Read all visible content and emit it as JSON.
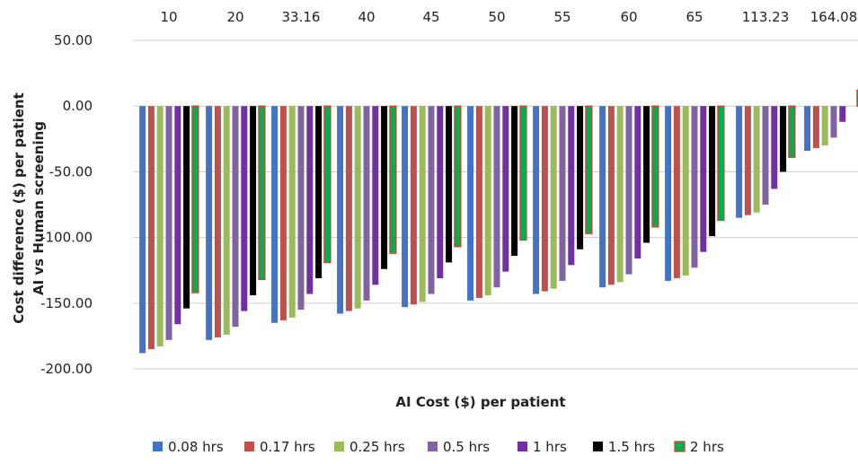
{
  "chart_data": {
    "type": "bar",
    "title": "",
    "xlabel": "AI Cost ($) per patient",
    "ylabel_line1": "Cost difference ($) per patient",
    "ylabel_line2": "AI vs Human screening",
    "ylim": [
      -200,
      50
    ],
    "yticks": [
      50,
      0,
      -50,
      -100,
      -150,
      -200
    ],
    "ytick_labels": [
      "50.00",
      "0.00",
      "-50.00",
      "-100.00",
      "-150.00",
      "-200.00"
    ],
    "grid": true,
    "legend_position": "bottom",
    "x_axis_labels_position": "top",
    "categories": [
      "10",
      "20",
      "33.16",
      "40",
      "45",
      "50",
      "55",
      "60",
      "65",
      "113.23",
      "164.08"
    ],
    "series": [
      {
        "name": "0.08 hrs",
        "color": "#4472c4",
        "values": [
          -188,
          -178,
          -165,
          -158,
          -153,
          -148,
          -143,
          -138,
          -133,
          -85,
          -34
        ]
      },
      {
        "name": "0.17 hrs",
        "color": "#c0504d",
        "values": [
          -185,
          -176,
          -163,
          -156,
          -151,
          -146,
          -141,
          -136,
          -131,
          -83,
          -32
        ]
      },
      {
        "name": "0.25 hrs",
        "color": "#9bbb59",
        "values": [
          -183,
          -174,
          -161,
          -154,
          -149,
          -144,
          -139,
          -134,
          -129,
          -81,
          -30
        ]
      },
      {
        "name": "0.5 hrs",
        "color": "#8064a2",
        "values": [
          -178,
          -168,
          -155,
          -148,
          -143,
          -138,
          -133,
          -128,
          -123,
          -75,
          -24
        ]
      },
      {
        "name": "1 hrs",
        "color": "#7030a0",
        "values": [
          -166,
          -156,
          -143,
          -136,
          -131,
          -126,
          -121,
          -116,
          -111,
          -63,
          -12
        ]
      },
      {
        "name": "1.5 hrs",
        "color": "#000000",
        "values": [
          -154,
          -144,
          -131,
          -124,
          -119,
          -114,
          -109,
          -104,
          -99,
          -50,
          0
        ]
      },
      {
        "name": "2 hrs",
        "color": "#00b050",
        "stroke": "#e03c31",
        "values": [
          -142,
          -132,
          -119,
          -112,
          -107,
          -102,
          -97,
          -92,
          -87,
          -39,
          12
        ]
      }
    ]
  }
}
